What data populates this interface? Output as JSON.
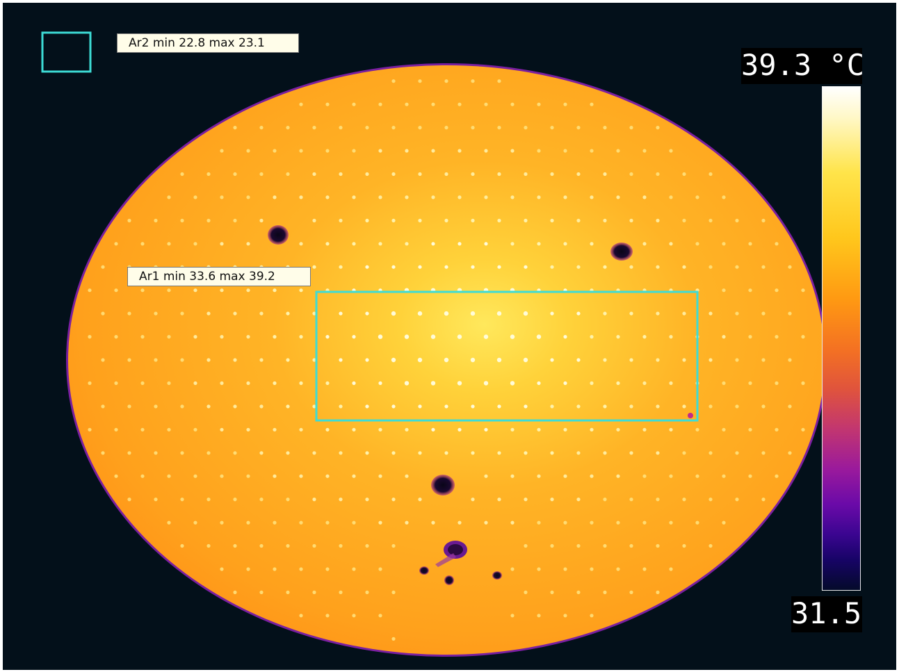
{
  "image": {
    "subject": "thermal image of a circular perforated plate",
    "palette": "iron / inferno",
    "background_color": "#03101a",
    "plate_color": "#ffa51f",
    "hotspot_color": "#ffe85c",
    "measurement_box_color": "#3ddcd6"
  },
  "areas": {
    "ar2": {
      "label": "Ar2 min 22.8 max 23.1",
      "min": 22.8,
      "max": 23.1
    },
    "ar1": {
      "label": "Ar1 min 33.6 max 39.2",
      "min": 33.6,
      "max": 39.2
    }
  },
  "scale": {
    "max_label": "39.3 °C",
    "min_label": "31.5",
    "max": 39.3,
    "min": 31.5,
    "unit": "°C"
  }
}
